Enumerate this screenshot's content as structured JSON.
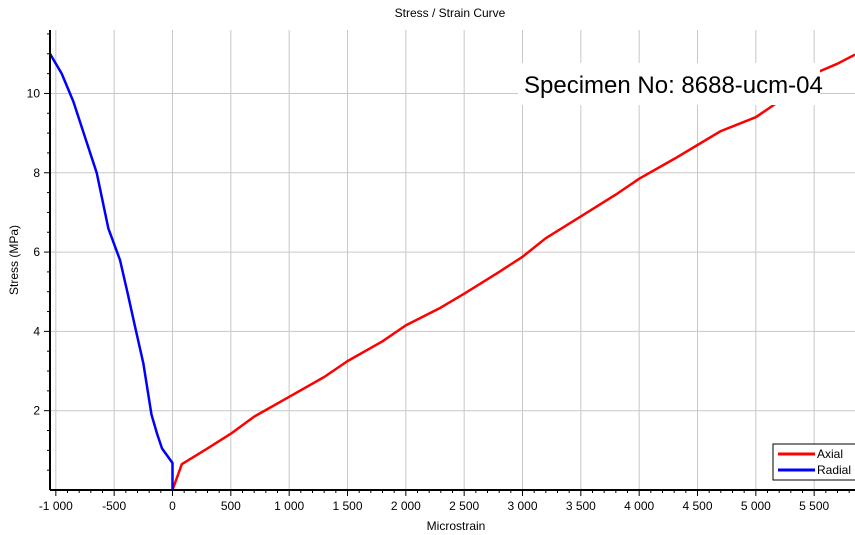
{
  "chart_data": {
    "type": "line",
    "title": "Stress / Strain Curve",
    "xlabel": "Microstrain",
    "ylabel": "Stress (MPa)",
    "annotation": "Specimen No: 8688-ucm-04",
    "xlim": [
      -1050,
      5850
    ],
    "ylim": [
      0,
      11.6
    ],
    "x_ticks": [
      -1000,
      -500,
      0,
      500,
      1000,
      1500,
      2000,
      2500,
      3000,
      3500,
      4000,
      4500,
      5000,
      5500
    ],
    "x_tick_labels": [
      "-1 000",
      "-500",
      "0",
      "500",
      "1 000",
      "1 500",
      "2 000",
      "2 500",
      "3 000",
      "3 500",
      "4 000",
      "4 500",
      "5 000",
      "5 500"
    ],
    "y_ticks": [
      2,
      4,
      6,
      8,
      10
    ],
    "y_tick_labels": [
      "2",
      "4",
      "6",
      "8",
      "10"
    ],
    "grid": true,
    "legend_position": "bottom-right",
    "series": [
      {
        "name": "Axial",
        "color": "#ff0000",
        "points": [
          [
            0,
            0
          ],
          [
            80,
            0.65
          ],
          [
            300,
            1.05
          ],
          [
            500,
            1.42
          ],
          [
            700,
            1.85
          ],
          [
            1000,
            2.35
          ],
          [
            1300,
            2.85
          ],
          [
            1500,
            3.25
          ],
          [
            1800,
            3.75
          ],
          [
            2000,
            4.15
          ],
          [
            2300,
            4.6
          ],
          [
            2500,
            4.95
          ],
          [
            2800,
            5.5
          ],
          [
            3000,
            5.88
          ],
          [
            3200,
            6.35
          ],
          [
            3500,
            6.9
          ],
          [
            3800,
            7.45
          ],
          [
            4000,
            7.85
          ],
          [
            4300,
            8.35
          ],
          [
            4500,
            8.7
          ],
          [
            4700,
            9.05
          ],
          [
            5000,
            9.4
          ],
          [
            5300,
            10.0
          ],
          [
            5500,
            10.5
          ],
          [
            5700,
            10.75
          ],
          [
            5850,
            10.98
          ]
        ]
      },
      {
        "name": "Radial",
        "color": "#0000ff",
        "points": [
          [
            0,
            0
          ],
          [
            0,
            0.68
          ],
          [
            -90,
            1.05
          ],
          [
            -130,
            1.4
          ],
          [
            -180,
            1.9
          ],
          [
            -250,
            3.2
          ],
          [
            -320,
            4.1
          ],
          [
            -380,
            4.9
          ],
          [
            -450,
            5.8
          ],
          [
            -550,
            6.6
          ],
          [
            -650,
            8.0
          ],
          [
            -750,
            8.9
          ],
          [
            -850,
            9.8
          ],
          [
            -950,
            10.5
          ],
          [
            -1050,
            11.0
          ]
        ]
      }
    ]
  }
}
